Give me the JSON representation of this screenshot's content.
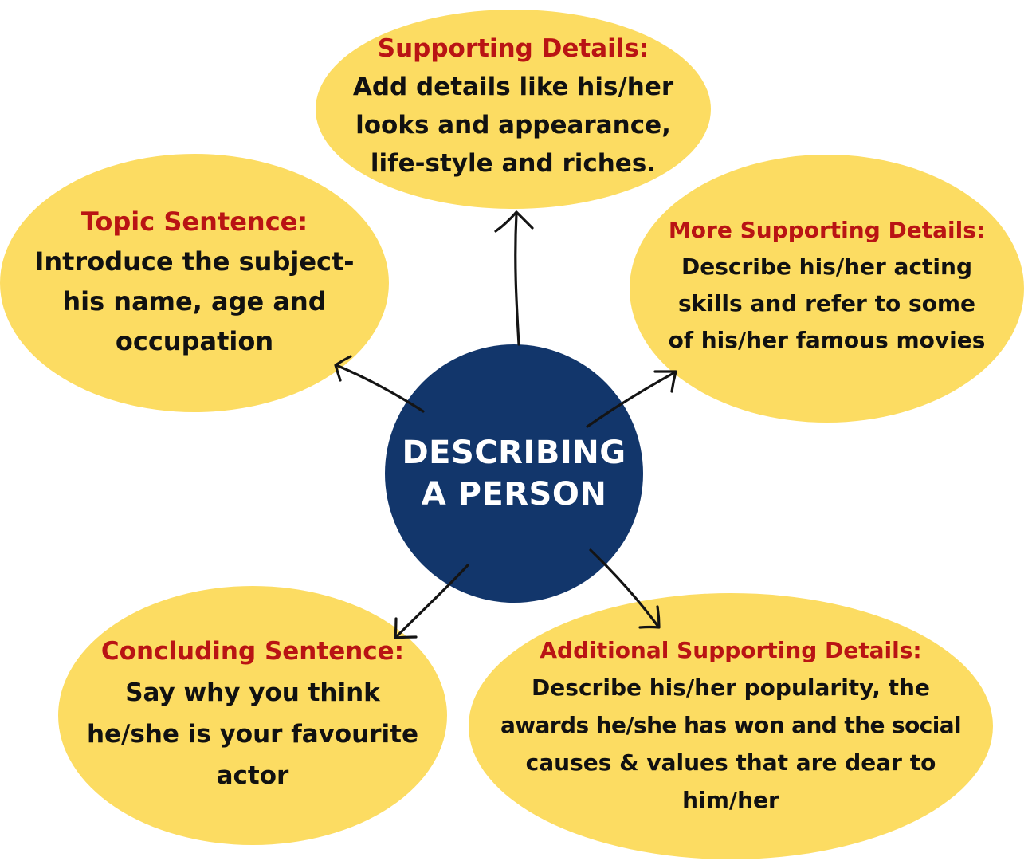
{
  "colors": {
    "bubble_fill": "#FCDC62",
    "heading_red": "#B91414",
    "center_fill": "#12366B",
    "center_text": "#FFFFFF",
    "arrow": "#141414"
  },
  "center": {
    "line1": "DESCRIBING",
    "line2": "A PERSON"
  },
  "nodes": {
    "supporting_details": {
      "heading": "Supporting Details:",
      "lines": [
        "Add details like his/her",
        "looks and appearance,",
        "life-style and riches."
      ]
    },
    "topic_sentence": {
      "heading": "Topic Sentence:",
      "lines": [
        "Introduce the subject-",
        "his name, age and",
        "occupation"
      ]
    },
    "more_supporting_details": {
      "heading": "More Supporting Details:",
      "lines": [
        "Describe his/her acting",
        "skills and refer to some",
        "of his/her famous movies"
      ]
    },
    "concluding_sentence": {
      "heading": "Concluding Sentence:",
      "lines": [
        "Say why you think",
        "he/she is your favourite",
        "actor"
      ]
    },
    "additional_supporting_details": {
      "heading": "Additional Supporting Details:",
      "lines": [
        "Describe his/her popularity, the",
        "awards he/she has won and the social",
        "causes & values that are dear to",
        "him/her"
      ]
    }
  }
}
